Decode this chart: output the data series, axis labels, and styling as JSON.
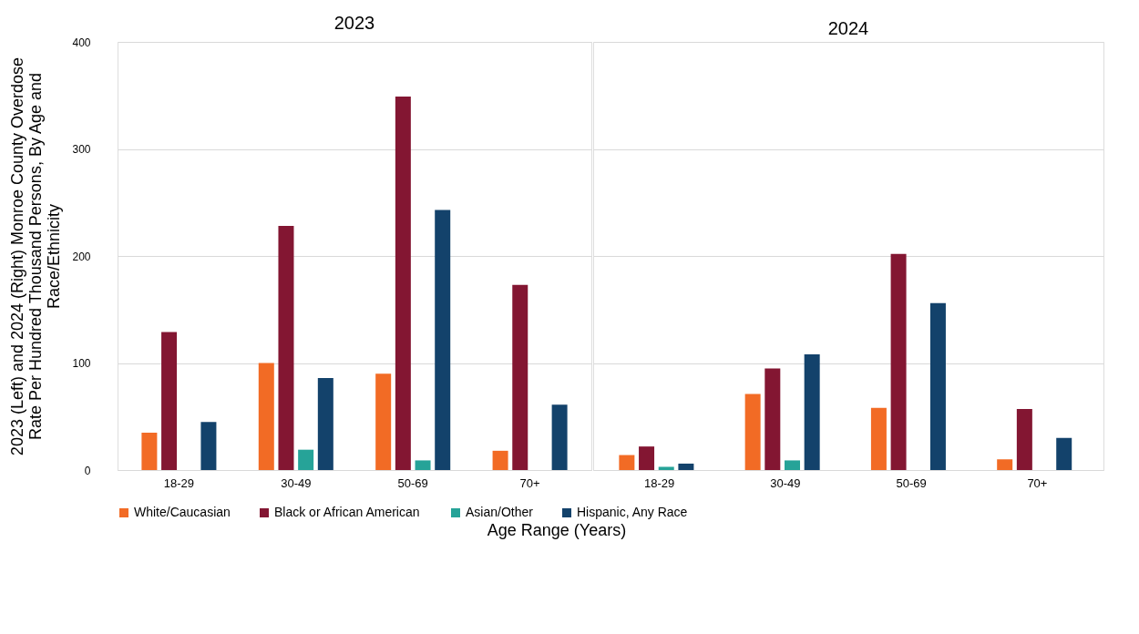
{
  "chart_data": [
    {
      "type": "bar",
      "title": "2023",
      "xlabel": "Age Range (Years)",
      "ylabel": "2023 (Left) and 2024 (Right) Monroe County Overdose\nRate Per Hundred Thousand Persons,    By Age and\nRace/Ethnicity",
      "categories": [
        "18-29",
        "30-49",
        "50-69",
        "70+"
      ],
      "series": [
        {
          "name": "White/Caucasian",
          "color": "#f26b25",
          "values": [
            35,
            100,
            90,
            18
          ]
        },
        {
          "name": "Black or African American",
          "color": "#831632",
          "values": [
            129,
            228,
            349,
            173
          ]
        },
        {
          "name": "Asian/Other",
          "color": "#26a398",
          "values": [
            null,
            19,
            9,
            null
          ]
        },
        {
          "name": "Hispanic, Any Race",
          "color": "#13426b",
          "values": [
            45,
            86,
            243,
            61
          ]
        }
      ],
      "ylim": [
        0,
        400
      ],
      "yticks": [
        0,
        100,
        200,
        300,
        400
      ],
      "grid": "y",
      "legend": "bottom"
    },
    {
      "type": "bar",
      "title": "2024",
      "categories": [
        "18-29",
        "30-49",
        "50-69",
        "70+"
      ],
      "series": [
        {
          "name": "White/Caucasian",
          "color": "#f26b25",
          "values": [
            14,
            71,
            58,
            10
          ]
        },
        {
          "name": "Black or African American",
          "color": "#831632",
          "values": [
            22,
            95,
            202,
            57
          ]
        },
        {
          "name": "Asian/Other",
          "color": "#26a398",
          "values": [
            3,
            9,
            null,
            null
          ]
        },
        {
          "name": "Hispanic, Any Race",
          "color": "#13426b",
          "values": [
            6,
            108,
            156,
            30
          ]
        }
      ],
      "ylim": [
        0,
        400
      ],
      "yticks": [
        0,
        100,
        200,
        300,
        400
      ],
      "grid": "y",
      "legend": "bottom",
      "tick_labels": "x"
    }
  ]
}
